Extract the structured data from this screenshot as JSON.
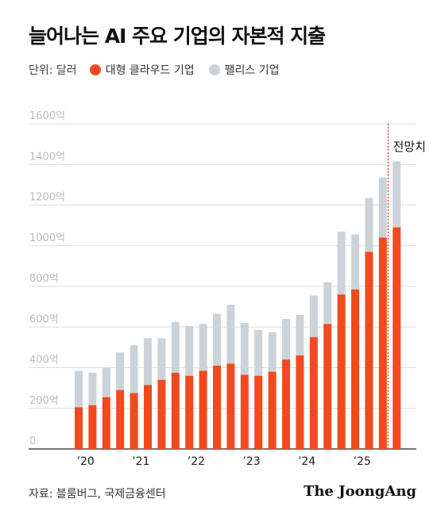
{
  "title": "늘어나는 AI 주요 기업의 자본적 지출",
  "legend": {
    "unit": "단위: 달러",
    "items": [
      {
        "label": "대형 클라우드 기업",
        "color": "#f04a1e"
      },
      {
        "label": "팰리스 기업",
        "color": "#ccd3d8"
      }
    ]
  },
  "source": "자료: 블룸버그, 국제금융센터",
  "brand": "The JoongAng",
  "chart_data": {
    "type": "bar",
    "stacked": true,
    "ylim": [
      0,
      1600
    ],
    "y_ticks": [
      {
        "value": 0,
        "label": "0"
      },
      {
        "value": 200,
        "label": "200억"
      },
      {
        "value": 400,
        "label": "400억"
      },
      {
        "value": 600,
        "label": "600억"
      },
      {
        "value": 800,
        "label": "800억"
      },
      {
        "value": 1000,
        "label": "1000억"
      },
      {
        "value": 1200,
        "label": "1200억"
      },
      {
        "value": 1400,
        "label": "1400억"
      },
      {
        "value": 1600,
        "label": "1600억"
      }
    ],
    "x_ticks": [
      {
        "index": 0.5,
        "label": "’20"
      },
      {
        "index": 4.5,
        "label": "’21"
      },
      {
        "index": 8.5,
        "label": "’22"
      },
      {
        "index": 12.5,
        "label": "’23"
      },
      {
        "index": 16.5,
        "label": "’24"
      },
      {
        "index": 20.5,
        "label": "’25"
      }
    ],
    "grid": true,
    "forecast_label": "전망치",
    "forecast_start_index": 23,
    "series": [
      {
        "name": "대형 클라우드 기업",
        "color": "#f04a1e",
        "values": [
          205,
          215,
          255,
          290,
          275,
          315,
          340,
          375,
          360,
          385,
          410,
          420,
          365,
          360,
          380,
          440,
          460,
          550,
          615,
          760,
          785,
          970,
          1040,
          1090
        ]
      },
      {
        "name": "팰리스 기업",
        "color": "#ccd3d8",
        "values": [
          180,
          160,
          145,
          185,
          235,
          230,
          205,
          250,
          245,
          230,
          255,
          290,
          255,
          225,
          195,
          200,
          200,
          205,
          205,
          310,
          270,
          265,
          295,
          325
        ]
      }
    ]
  }
}
